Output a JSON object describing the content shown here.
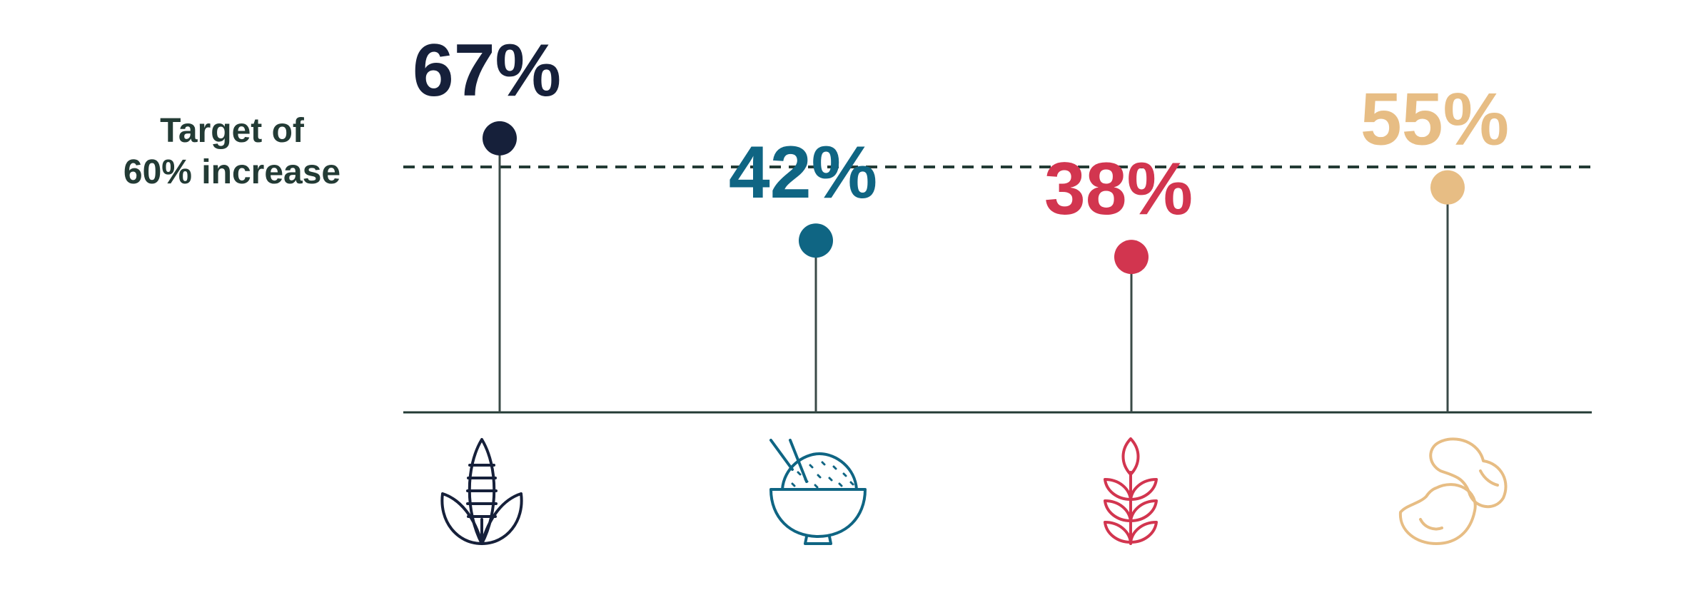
{
  "target_label": {
    "line1": "Target of",
    "line2": "60% increase"
  },
  "colors": {
    "axis": "#233b35",
    "target_line": "#233b35",
    "stem": "#3a4a47"
  },
  "chart_data": {
    "type": "lollipop",
    "title": "",
    "xlabel": "",
    "ylabel": "",
    "ylim": [
      0,
      80
    ],
    "target": 60,
    "categories": [
      "corn",
      "rice",
      "wheat",
      "beans"
    ],
    "values": [
      67,
      42,
      38,
      55
    ],
    "labels": [
      "67%",
      "42%",
      "38%",
      "55%"
    ],
    "colors": [
      "#16203a",
      "#0f6583",
      "#d2354f",
      "#e7bd84"
    ],
    "icons": [
      "corn-icon",
      "rice-bowl-icon",
      "wheat-icon",
      "beans-icon"
    ]
  }
}
